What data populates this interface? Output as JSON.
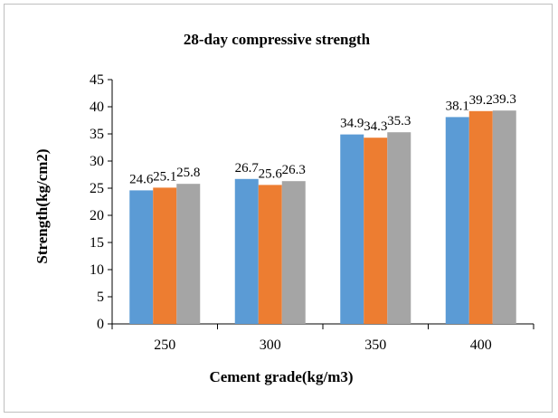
{
  "chart_data": {
    "type": "bar",
    "title": "28-day compressive strength",
    "xlabel": "Cement grade(kg/m3)",
    "ylabel": "Strength(kg/cm2)",
    "categories": [
      "250",
      "300",
      "350",
      "400"
    ],
    "series": [
      {
        "values": [
          24.6,
          26.7,
          34.9,
          38.1
        ],
        "color": "#5b9bd5"
      },
      {
        "values": [
          25.1,
          25.6,
          34.3,
          39.2
        ],
        "color": "#ed7d31"
      },
      {
        "values": [
          25.8,
          26.3,
          35.3,
          39.3
        ],
        "color": "#a5a5a5"
      }
    ],
    "ylim": [
      0,
      45
    ],
    "yticks": [
      0,
      5,
      10,
      15,
      20,
      25,
      30,
      35,
      40,
      45
    ],
    "grid": false,
    "legend": "none"
  }
}
